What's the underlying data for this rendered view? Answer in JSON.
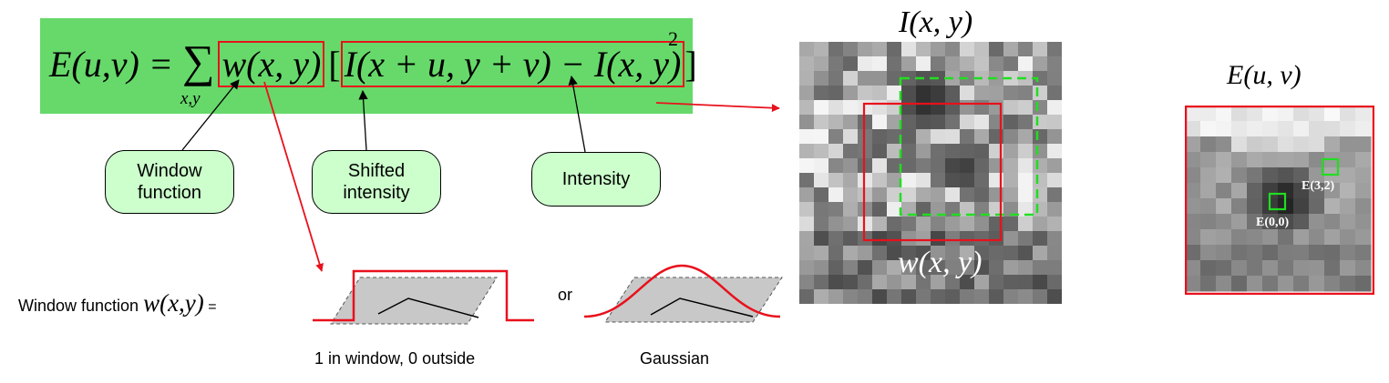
{
  "equation": {
    "lhs": "E(u,v) = ",
    "window_term": "w(x, y)",
    "bracket_open": "[",
    "intensity_term": "I(x + u, y + v) − I(x, y)",
    "bracket_close": "]",
    "exponent": "2",
    "sum_subscript": "x,y"
  },
  "callouts": {
    "window": "Window\nfunction",
    "shifted": "Shifted\nintensity",
    "intensity": "Intensity"
  },
  "window_function": {
    "label_prefix": "Window function ",
    "label_symbol": "w(x,y)",
    "label_suffix": " =",
    "or_text": "or",
    "box_caption": "1 in window, 0 outside",
    "gaussian_caption": "Gaussian"
  },
  "image_panel": {
    "title": "I(x, y)",
    "window_label": "w(x, y)"
  },
  "error_panel": {
    "title": "E(u, v)",
    "label_00": "E(0,0)",
    "label_32": "E(3,2)"
  },
  "colors": {
    "equation_bg": "#66d96a",
    "callout_bg": "#ccffcc",
    "red": "#e8111c",
    "green": "#22dd22"
  }
}
